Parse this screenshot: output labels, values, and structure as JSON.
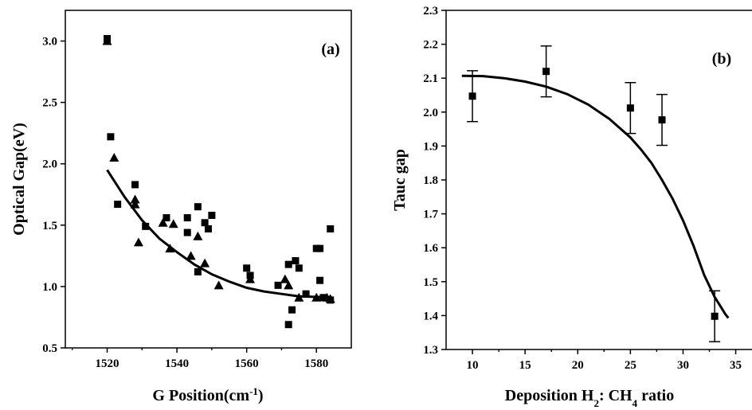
{
  "chart_data": [
    {
      "type": "scatter",
      "panel_label": "(a)",
      "xlabel": "G Position(cm",
      "xlabel_sup": "-1",
      "xlabel_tail": ")",
      "ylabel": "Optical Gap(eV)",
      "xlim": [
        1508,
        1590
      ],
      "ylim": [
        0.5,
        3.25
      ],
      "xticks": [
        1520,
        1540,
        1560,
        1580
      ],
      "yticks": [
        0.5,
        1.0,
        1.5,
        2.0,
        2.5,
        3.0
      ],
      "ytick_labels": [
        "0.5",
        "1.0",
        "1.5",
        "2.0",
        "2.5",
        "3.0"
      ],
      "series": [
        {
          "marker": "square",
          "points": [
            [
              1520,
              3.02
            ],
            [
              1521,
              2.22
            ],
            [
              1523,
              1.67
            ],
            [
              1528,
              1.83
            ],
            [
              1531,
              1.49
            ],
            [
              1537,
              1.56
            ],
            [
              1543,
              1.56
            ],
            [
              1543,
              1.44
            ],
            [
              1546,
              1.65
            ],
            [
              1546,
              1.12
            ],
            [
              1548,
              1.52
            ],
            [
              1549,
              1.47
            ],
            [
              1550,
              1.58
            ],
            [
              1560,
              1.15
            ],
            [
              1561,
              1.09
            ],
            [
              1569,
              1.01
            ],
            [
              1572,
              1.18
            ],
            [
              1572,
              0.69
            ],
            [
              1573,
              0.81
            ],
            [
              1574,
              1.21
            ],
            [
              1575,
              1.15
            ],
            [
              1577,
              0.94
            ],
            [
              1580,
              1.31
            ],
            [
              1581,
              1.31
            ],
            [
              1581,
              1.05
            ],
            [
              1582,
              0.91
            ],
            [
              1584,
              1.47
            ],
            [
              1584,
              0.89
            ]
          ]
        },
        {
          "marker": "triangle",
          "points": [
            [
              1520,
              3.0
            ],
            [
              1522,
              2.05
            ],
            [
              1528,
              1.67
            ],
            [
              1528,
              1.71
            ],
            [
              1529,
              1.36
            ],
            [
              1536,
              1.52
            ],
            [
              1538,
              1.31
            ],
            [
              1539,
              1.51
            ],
            [
              1544,
              1.25
            ],
            [
              1546,
              1.41
            ],
            [
              1548,
              1.19
            ],
            [
              1552,
              1.01
            ],
            [
              1561,
              1.06
            ],
            [
              1571,
              1.06
            ],
            [
              1572,
              1.01
            ],
            [
              1575,
              0.91
            ],
            [
              1580,
              0.91
            ],
            [
              1583,
              0.91
            ],
            [
              1584,
              0.9
            ]
          ]
        }
      ],
      "fit_curve": [
        [
          1520,
          1.95
        ],
        [
          1525,
          1.73
        ],
        [
          1530,
          1.54
        ],
        [
          1535,
          1.39
        ],
        [
          1540,
          1.28
        ],
        [
          1545,
          1.18
        ],
        [
          1550,
          1.1
        ],
        [
          1555,
          1.04
        ],
        [
          1560,
          0.99
        ],
        [
          1565,
          0.96
        ],
        [
          1570,
          0.94
        ],
        [
          1575,
          0.92
        ],
        [
          1580,
          0.915
        ],
        [
          1584,
          0.915
        ]
      ]
    },
    {
      "type": "scatter",
      "panel_label": "(b)",
      "xlabel": "Deposition H",
      "xlabel_sub": "2",
      "xlabel_mid": ": CH",
      "xlabel_sub2": "4",
      "xlabel_tail": " ratio",
      "ylabel": "Tauc gap",
      "xlim": [
        7.5,
        37
      ],
      "ylim": [
        1.3,
        2.3
      ],
      "xticks": [
        10,
        15,
        20,
        25,
        30,
        35
      ],
      "yticks": [
        1.3,
        1.4,
        1.5,
        1.6,
        1.7,
        1.8,
        1.9,
        2.0,
        2.1,
        2.2,
        2.3
      ],
      "ytick_labels": [
        "1.3",
        "1.4",
        "1.5",
        "1.6",
        "1.7",
        "1.8",
        "1.9",
        "2.0",
        "2.1",
        "2.2",
        "2.3"
      ],
      "series": [
        {
          "marker": "square",
          "points": [
            [
              10,
              2.047
            ],
            [
              17,
              2.12
            ],
            [
              25,
              2.012
            ],
            [
              28,
              1.977
            ],
            [
              33,
              1.398
            ]
          ],
          "err": [
            0.075,
            0.075,
            0.075,
            0.075,
            0.075
          ]
        }
      ],
      "fit_curve": [
        [
          9,
          2.107
        ],
        [
          11,
          2.106
        ],
        [
          13,
          2.1
        ],
        [
          15,
          2.09
        ],
        [
          17,
          2.075
        ],
        [
          19,
          2.053
        ],
        [
          21,
          2.022
        ],
        [
          23,
          1.98
        ],
        [
          25,
          1.925
        ],
        [
          26,
          1.89
        ],
        [
          27,
          1.85
        ],
        [
          28,
          1.8
        ],
        [
          29,
          1.745
        ],
        [
          30,
          1.68
        ],
        [
          31,
          1.605
        ],
        [
          32,
          1.52
        ],
        [
          33,
          1.455
        ],
        [
          33.5,
          1.43
        ],
        [
          34,
          1.405
        ],
        [
          34.3,
          1.393
        ]
      ]
    }
  ]
}
